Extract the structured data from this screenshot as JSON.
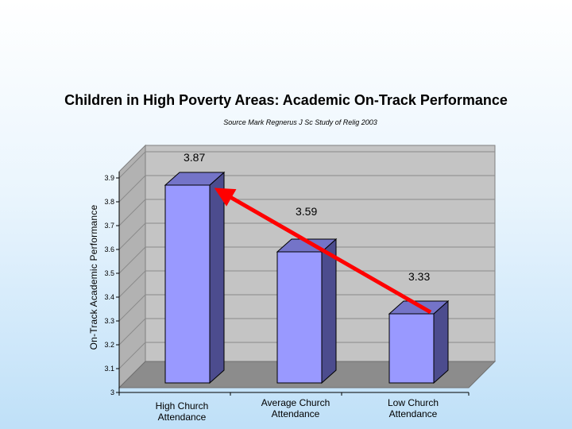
{
  "chart_data": {
    "type": "bar",
    "title": "Children in High Poverty Areas: Academic On-Track Performance",
    "subtitle": "Source Mark Regnerus J Sc Study of Relig 2003",
    "xlabel": "",
    "ylabel": "On-Track Academic Performance",
    "categories": [
      "High Church Attendance",
      "Average Church Attendance",
      "Low Church Attendance"
    ],
    "category_lines": [
      [
        "High Church",
        "Attendance"
      ],
      [
        "Average Church",
        "Attendance"
      ],
      [
        "Low Church",
        "Attendance"
      ]
    ],
    "values": [
      3.87,
      3.59,
      3.33
    ],
    "value_labels": [
      "3.87",
      "3.59",
      "3.33"
    ],
    "ylim": [
      3,
      3.9
    ],
    "yticks": [
      "3",
      "3.1",
      "3.2",
      "3.3",
      "3.4",
      "3.5",
      "3.6",
      "3.7",
      "3.8",
      "3.9"
    ],
    "style": "3d",
    "annotation": "arrow from Low Church Attendance bar to High Church Attendance bar",
    "colors": {
      "bar_front": "#9999ff",
      "bar_side": "#4c4c8e",
      "bar_top": "#7474c8",
      "back_wall": "#c4c4c4",
      "floor": "#8c8c8c",
      "arrow": "#ff0000"
    }
  }
}
